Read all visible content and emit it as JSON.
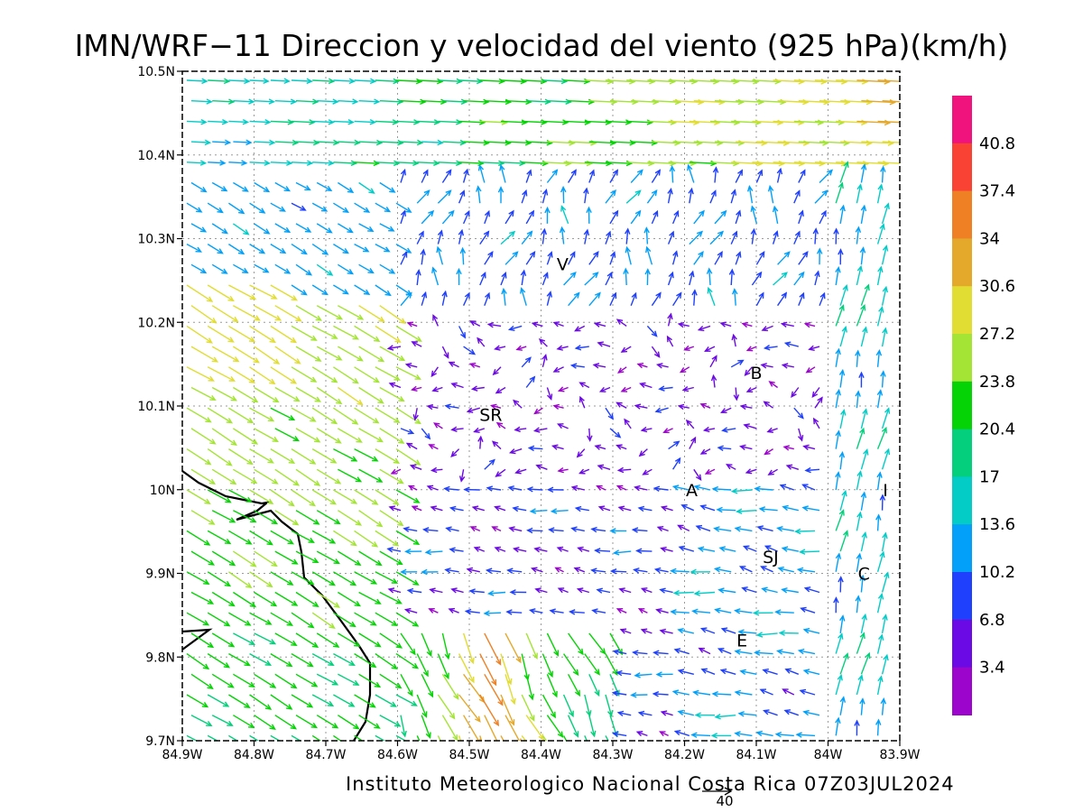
{
  "title": "IMN/WRF−11 Direccion y velocidad del viento (925 hPa)(km/h)",
  "credit": "Instituto Meteorologico Nacional Costa Rica 07Z03JUL2024",
  "reference_vector": {
    "label": "40",
    "speed": 40
  },
  "map": {
    "lon_range": [
      -84.9,
      -83.9
    ],
    "lat_range": [
      9.7,
      10.5
    ],
    "x_ticks": [
      "84.9W",
      "84.8W",
      "84.7W",
      "84.6W",
      "84.5W",
      "84.4W",
      "84.3W",
      "84.2W",
      "84.1W",
      "84W",
      "83.9W"
    ],
    "y_ticks": [
      "10.5N",
      "10.4N",
      "10.3N",
      "10.2N",
      "10.1N",
      "10N",
      "9.9N",
      "9.8N",
      "9.7N"
    ],
    "grid": true
  },
  "colorbar": {
    "labels": [
      "40.8",
      "37.4",
      "34",
      "30.6",
      "27.2",
      "23.8",
      "20.4",
      "17",
      "13.6",
      "10.2",
      "6.8",
      "3.4"
    ],
    "colors": [
      "#f0137e",
      "#fa4234",
      "#ef8024",
      "#e4a92b",
      "#e1dd32",
      "#a4e434",
      "#05d305",
      "#04cf7c",
      "#03ccc7",
      "#02a0f8",
      "#1f40fc",
      "#6b0ae4",
      "#9b05cc"
    ]
  },
  "places": [
    {
      "name": "V",
      "lon": -84.37,
      "lat": 10.27
    },
    {
      "name": "B",
      "lon": -84.1,
      "lat": 10.14
    },
    {
      "name": "SR",
      "lon": -84.47,
      "lat": 10.09
    },
    {
      "name": "A",
      "lon": -84.19,
      "lat": 10.0
    },
    {
      "name": "I",
      "lon": -83.92,
      "lat": 10.0
    },
    {
      "name": "SJ",
      "lon": -84.08,
      "lat": 9.92
    },
    {
      "name": "C",
      "lon": -83.95,
      "lat": 9.9
    },
    {
      "name": "E",
      "lon": -84.12,
      "lat": 9.82
    }
  ]
}
